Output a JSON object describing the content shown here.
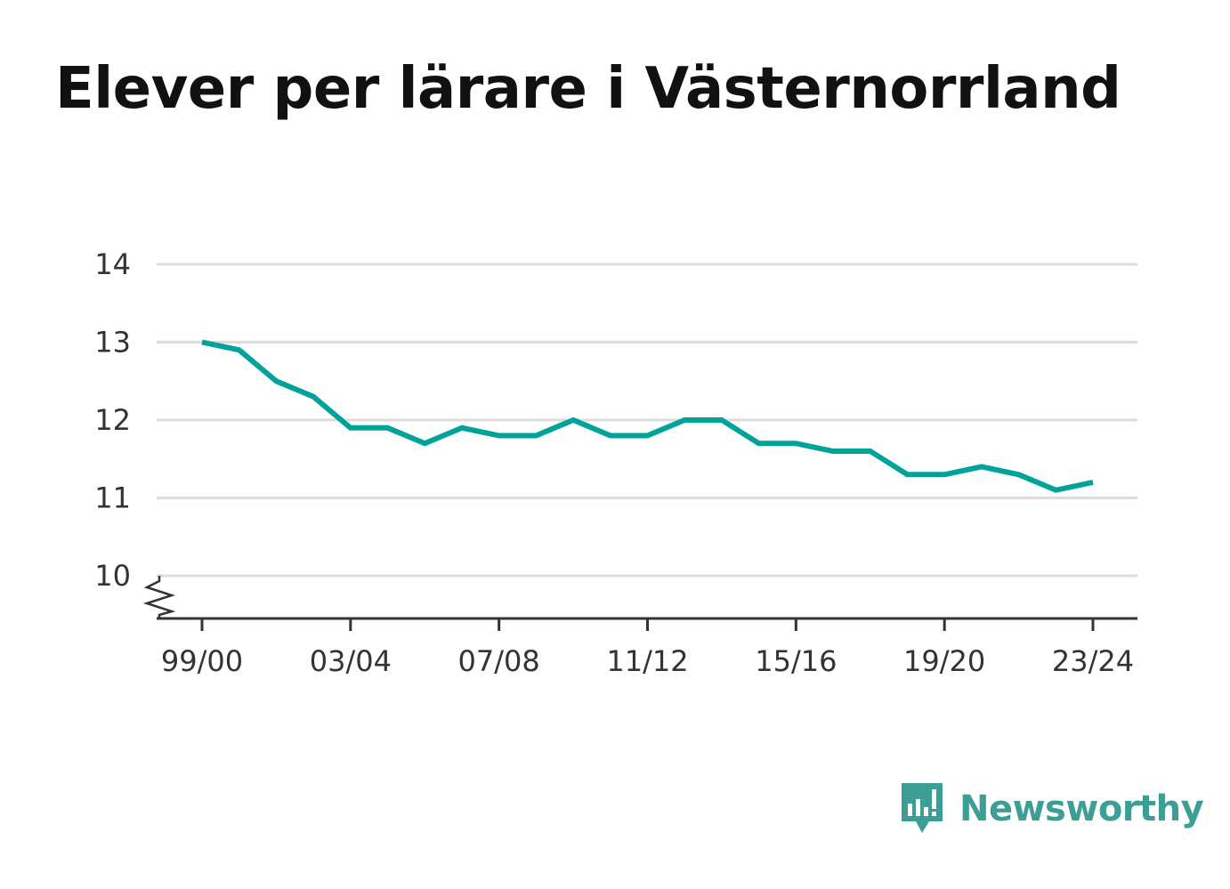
{
  "title": "Elever per lärare i Västernorrland",
  "brand": {
    "name": "Newsworthy",
    "icon": "newsworthy-chart-bubble-icon",
    "color": "#3c9e94"
  },
  "chart_data": {
    "type": "line",
    "title": "Elever per lärare i Västernorrland",
    "xlabel": "",
    "ylabel": "",
    "categories": [
      "99/00",
      "00/01",
      "01/02",
      "02/03",
      "03/04",
      "04/05",
      "05/06",
      "06/07",
      "07/08",
      "08/09",
      "09/10",
      "10/11",
      "11/12",
      "12/13",
      "13/14",
      "14/15",
      "15/16",
      "16/17",
      "17/18",
      "18/19",
      "19/20",
      "20/21",
      "21/22",
      "22/23",
      "23/24"
    ],
    "series": [
      {
        "values": [
          13.0,
          12.9,
          12.5,
          12.3,
          11.9,
          11.9,
          11.7,
          11.9,
          11.8,
          11.8,
          12.0,
          11.8,
          11.8,
          12.0,
          12.0,
          11.7,
          11.7,
          11.6,
          11.6,
          11.3,
          11.3,
          11.4,
          11.3,
          11.1,
          11.2
        ],
        "color": "#00a39a"
      }
    ],
    "xticks": [
      "99/00",
      "03/04",
      "07/08",
      "11/12",
      "15/16",
      "19/20",
      "23/24"
    ],
    "yticks": [
      10,
      11,
      12,
      13,
      14
    ],
    "ylim": [
      10,
      14
    ],
    "y_axis_break": true,
    "grid": true,
    "legend": "none"
  }
}
